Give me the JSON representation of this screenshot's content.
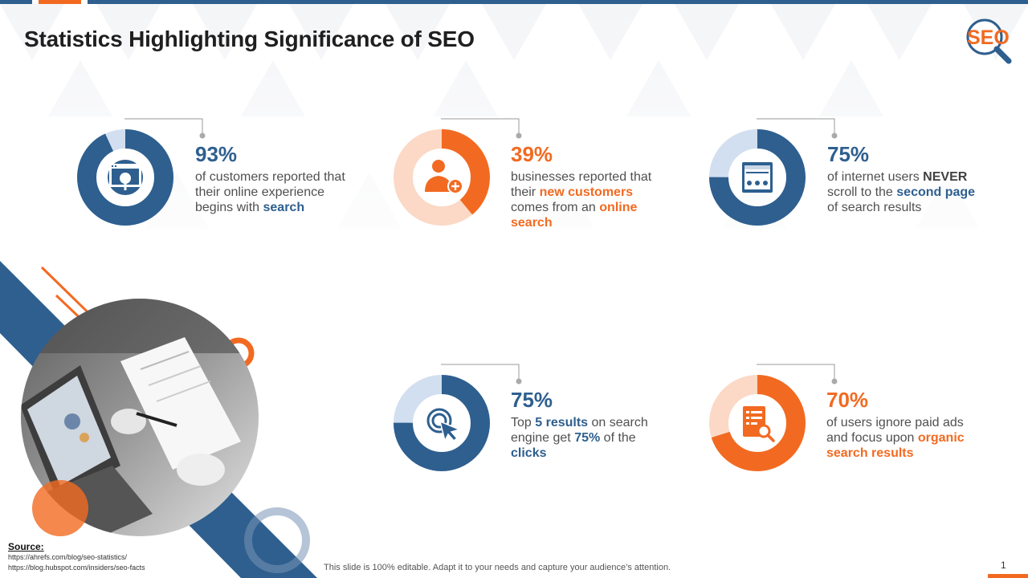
{
  "slide": {
    "title": "Statistics Highlighting Significance of SEO",
    "logo_text": "SEO",
    "colors": {
      "blue": "#2e5f8f",
      "orange": "#f26a21",
      "light_blue": "#d2dff0",
      "light_orange": "#fbd9c6"
    }
  },
  "stats": [
    {
      "percent_label": "93%",
      "value": 93,
      "color": "blue",
      "icon": "browser-search-icon",
      "text": [
        {
          "t": "of customers reported that their online experience begins with ",
          "s": "plain"
        },
        {
          "t": "search",
          "s": "blue"
        }
      ]
    },
    {
      "percent_label": "39%",
      "value": 39,
      "color": "orange",
      "icon": "add-user-icon",
      "text": [
        {
          "t": "businesses reported that their ",
          "s": "plain"
        },
        {
          "t": "new customers",
          "s": "orange"
        },
        {
          "t": " comes from an ",
          "s": "plain"
        },
        {
          "t": "online search",
          "s": "orange"
        }
      ]
    },
    {
      "percent_label": "75%",
      "value": 75,
      "color": "blue",
      "icon": "webpage-icon",
      "text": [
        {
          "t": "of internet users ",
          "s": "plain"
        },
        {
          "t": "NEVER",
          "s": "dark"
        },
        {
          "t": " scroll to the ",
          "s": "plain"
        },
        {
          "t": "second page",
          "s": "blue"
        },
        {
          "t": " of search results",
          "s": "plain"
        }
      ]
    },
    {
      "percent_label": "75%",
      "value": 75,
      "color": "blue",
      "icon": "click-target-icon",
      "text": [
        {
          "t": "Top ",
          "s": "plain"
        },
        {
          "t": "5 results",
          "s": "blue"
        },
        {
          "t": " on search engine get ",
          "s": "plain"
        },
        {
          "t": "75%",
          "s": "blue"
        },
        {
          "t": " of the ",
          "s": "plain"
        },
        {
          "t": "clicks",
          "s": "blue"
        }
      ]
    },
    {
      "percent_label": "70%",
      "value": 70,
      "color": "orange",
      "icon": "document-search-icon",
      "text": [
        {
          "t": "of users ignore paid ads and focus upon ",
          "s": "plain"
        },
        {
          "t": "organic search results",
          "s": "orange"
        }
      ]
    }
  ],
  "source": {
    "heading": "Source:",
    "links": [
      "https://ahrefs.com/blog/seo-statistics/",
      "https://blog.hubspot.com/insiders/seo-facts"
    ]
  },
  "footer_note": "This slide is 100% editable. Adapt it to your needs and capture your audience’s attention.",
  "page_number": "1"
}
